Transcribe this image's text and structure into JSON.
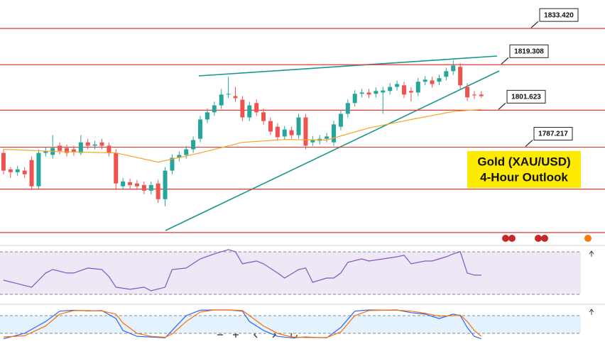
{
  "chart_data": [
    {
      "type": "candlestick",
      "title": "Gold (XAU/USD)",
      "subtitle": "4-Hour Outlook",
      "ylim": [
        1749,
        1844.5
      ],
      "xlim": [
        -0.5,
        85.6
      ],
      "up_color": "#26a69a",
      "down_color": "#ef5350",
      "level_color": "#e53935",
      "levels": [
        {
          "value": 1833.42,
          "label": "1833.420"
        },
        {
          "value": 1819.308,
          "label": "1819.308"
        },
        {
          "value": 1801.623,
          "label": "1801.623"
        },
        {
          "value": 1787.217,
          "label": "1787.217"
        },
        1770.9,
        1754
      ],
      "open": [
        1785.0,
        1778.6,
        1777.5,
        1778.1,
        1782.2,
        1772.0,
        1785.0,
        1784.2,
        1787.8,
        1786.9,
        1786.4,
        1785.0,
        1789.1,
        1787.8,
        1789.1,
        1787.8,
        1785.0,
        1772.0,
        1773.6,
        1773.1,
        1772.5,
        1770.3,
        1773.1,
        1767.0,
        1778.1,
        1783.1,
        1784.2,
        1786.4,
        1790.5,
        1798.0,
        1800.8,
        1803.5,
        1807.7,
        1807.1,
        1805.7,
        1798.8,
        1804.4,
        1800.8,
        1797.4,
        1795.2,
        1791.4,
        1793.8,
        1791.9,
        1798.8,
        1789.1,
        1789.7,
        1790.5,
        1789.1,
        1795.2,
        1800.2,
        1804.4,
        1808.0,
        1808.5,
        1808.0,
        1808.5,
        1809.1,
        1810.7,
        1811.3,
        1809.1,
        1808.5,
        1812.7,
        1813.2,
        1812.7,
        1814.6,
        1816.8,
        1818.5,
        1810.7,
        1807.7,
        1807.7
      ],
      "high": [
        1786.4,
        1779.5,
        1780.0,
        1779.5,
        1783.6,
        1786.4,
        1787.2,
        1791.9,
        1789.1,
        1788.3,
        1787.8,
        1791.9,
        1790.5,
        1789.7,
        1790.5,
        1789.1,
        1786.4,
        1775.3,
        1775.0,
        1774.5,
        1773.9,
        1773.9,
        1774.5,
        1779.5,
        1784.5,
        1785.6,
        1787.8,
        1791.4,
        1799.4,
        1802.2,
        1804.9,
        1809.9,
        1814.6,
        1810.7,
        1807.1,
        1804.9,
        1805.8,
        1802.2,
        1798.8,
        1796.6,
        1795.5,
        1795.2,
        1800.2,
        1800.2,
        1791.6,
        1791.9,
        1792.8,
        1797.5,
        1801.6,
        1805.8,
        1809.4,
        1809.9,
        1809.9,
        1810.5,
        1810.7,
        1812.1,
        1813.2,
        1812.7,
        1810.5,
        1814.1,
        1814.9,
        1814.6,
        1815.5,
        1818.2,
        1821.0,
        1819.9,
        1812.1,
        1809.1,
        1809.1
      ],
      "low": [
        1776.7,
        1775.3,
        1776.1,
        1775.3,
        1770.6,
        1771.1,
        1783.6,
        1782.8,
        1784.4,
        1783.6,
        1783.9,
        1784.2,
        1786.4,
        1786.4,
        1786.4,
        1783.6,
        1771.1,
        1770.6,
        1771.1,
        1770.6,
        1768.9,
        1768.9,
        1765.6,
        1764.2,
        1776.7,
        1781.7,
        1782.8,
        1785.0,
        1789.1,
        1796.6,
        1799.4,
        1802.1,
        1806.3,
        1804.9,
        1797.4,
        1797.4,
        1799.4,
        1796.0,
        1791.9,
        1789.7,
        1790.0,
        1790.5,
        1790.5,
        1786.4,
        1787.7,
        1788.3,
        1789.1,
        1787.7,
        1793.8,
        1798.8,
        1803.0,
        1806.6,
        1806.3,
        1806.6,
        1800.2,
        1807.7,
        1809.3,
        1806.3,
        1805.0,
        1807.1,
        1811.3,
        1810.4,
        1811.3,
        1813.2,
        1815.4,
        1809.9,
        1805.2,
        1806.0,
        1806.3
      ],
      "close": [
        1778.1,
        1777.5,
        1778.6,
        1776.7,
        1772.0,
        1785.0,
        1785.8,
        1786.9,
        1785.8,
        1785.0,
        1785.3,
        1789.1,
        1787.8,
        1788.3,
        1787.8,
        1785.0,
        1773.1,
        1773.9,
        1772.5,
        1772.0,
        1770.3,
        1772.5,
        1767.0,
        1778.1,
        1783.1,
        1784.2,
        1786.4,
        1790.0,
        1798.0,
        1800.8,
        1803.5,
        1807.7,
        1808.0,
        1806.3,
        1798.8,
        1803.5,
        1800.8,
        1797.4,
        1793.3,
        1791.1,
        1794.1,
        1791.9,
        1798.8,
        1787.8,
        1790.2,
        1790.5,
        1791.4,
        1796.1,
        1800.2,
        1804.4,
        1808.0,
        1808.5,
        1807.7,
        1809.1,
        1809.3,
        1810.7,
        1811.8,
        1807.7,
        1808.5,
        1812.7,
        1813.5,
        1811.8,
        1814.1,
        1816.8,
        1819.0,
        1811.3,
        1806.6,
        1807.4,
        1807.1
      ],
      "series": [
        {
          "color": "#f5a623",
          "x": [
            0,
            8,
            16,
            22,
            28,
            34,
            40,
            46,
            52,
            58,
            64,
            68
          ],
          "values": [
            1786.4,
            1785.5,
            1785.0,
            1781.4,
            1785.0,
            1789.1,
            1790.2,
            1790.0,
            1794.7,
            1798.0,
            1801.1,
            1801.9
          ]
        }
      ]
    },
    {
      "type": "line",
      "ylim": [
        23.3,
        73.3
      ],
      "xlim": [
        -0.5,
        85.6
      ],
      "levels": [
        30,
        70
      ],
      "shade": "#ede7f6",
      "series": [
        {
          "color": "#7e57c2",
          "x": [
            0,
            2,
            4,
            5,
            6,
            7,
            9,
            10,
            12,
            14,
            15,
            16,
            18,
            20,
            21,
            23,
            24,
            26,
            28,
            30,
            32,
            33,
            34,
            36,
            37,
            39,
            40,
            42,
            43,
            44,
            46,
            47,
            48,
            49,
            51,
            52,
            54,
            56,
            57,
            58,
            60,
            61,
            63,
            64,
            65,
            66,
            67,
            68
          ],
          "values": [
            43.3,
            40,
            36.7,
            43.3,
            50,
            53.3,
            50,
            50,
            54.7,
            53.3,
            46.7,
            36.7,
            34.7,
            36.7,
            33.3,
            36.7,
            53.3,
            54.7,
            63.3,
            68,
            72,
            70,
            58.7,
            61.3,
            58.7,
            50,
            45.3,
            53.3,
            54.7,
            41.3,
            45.3,
            45.3,
            50,
            60,
            63.3,
            61.3,
            63.3,
            65.3,
            66.7,
            58.7,
            61.3,
            61.3,
            65.3,
            68,
            70,
            50,
            48,
            48
          ]
        }
      ]
    },
    {
      "type": "line",
      "ylim": [
        -11,
        111
      ],
      "xlim": [
        -0.5,
        85.6
      ],
      "levels": [
        20,
        80
      ],
      "shade": "#e3f2fd",
      "series": [
        {
          "color": "#2962ff",
          "x": [
            0,
            3,
            6,
            8,
            10,
            12,
            14,
            16,
            17,
            19,
            21,
            23,
            24,
            26,
            28,
            30,
            32,
            34,
            35,
            37,
            39,
            41,
            43,
            46,
            48,
            50,
            52,
            54,
            56,
            58,
            60,
            62,
            64,
            65,
            66,
            67,
            68
          ],
          "values": [
            2,
            20,
            60,
            95,
            98,
            96,
            97,
            70,
            30,
            10,
            8,
            5,
            30,
            80,
            98,
            99,
            99,
            95,
            60,
            30,
            10,
            5,
            8,
            5,
            40,
            95,
            99,
            98,
            99,
            90,
            85,
            70,
            85,
            80,
            40,
            10,
            2
          ]
        },
        {
          "color": "#ff6d00",
          "x": [
            0,
            3,
            6,
            8,
            10,
            12,
            14,
            16,
            17,
            19,
            21,
            23,
            24,
            26,
            28,
            30,
            32,
            34,
            35,
            37,
            39,
            41,
            43,
            46,
            48,
            50,
            52,
            54,
            56,
            58,
            60,
            62,
            64,
            65,
            66,
            67,
            68
          ],
          "values": [
            8,
            12,
            45,
            85,
            97,
            97,
            96,
            85,
            55,
            20,
            10,
            7,
            18,
            60,
            92,
            99,
            99,
            97,
            80,
            45,
            20,
            8,
            6,
            6,
            25,
            80,
            97,
            98,
            98,
            95,
            88,
            78,
            80,
            82,
            60,
            30,
            10
          ]
        }
      ]
    }
  ]
}
